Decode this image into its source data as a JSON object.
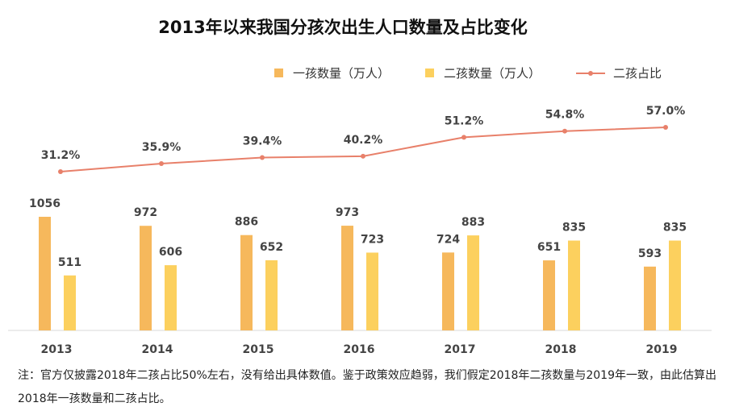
{
  "chart_data": {
    "type": "bar",
    "title": "2013年以来我国分孩次出生人口数量及占比变化",
    "categories": [
      "2013",
      "2014",
      "2015",
      "2016",
      "2017",
      "2018",
      "2019"
    ],
    "series": [
      {
        "name": "一孩数量（万人）",
        "type": "bar",
        "color": "#F6B85C",
        "values": [
          1056,
          972,
          886,
          973,
          724,
          651,
          593
        ]
      },
      {
        "name": "二孩数量（万人）",
        "type": "bar",
        "color": "#FCD05E",
        "values": [
          511,
          606,
          652,
          723,
          883,
          835,
          835
        ]
      },
      {
        "name": "二孩占比",
        "type": "line",
        "color": "#E8806A",
        "values": [
          31.2,
          35.9,
          39.4,
          40.2,
          51.2,
          54.8,
          57.0
        ],
        "labels": [
          "31.2%",
          "35.9%",
          "39.4%",
          "40.2%",
          "51.2%",
          "54.8%",
          "57.0%"
        ]
      }
    ],
    "legend": "top-right",
    "grid": false
  },
  "note": "注：官方仅披露2018年二孩占比50%左右，没有给出具体数值。鉴于政策效应趋弱，我们假定2018年二孩数量与2019年一致，由此估算出2018年一孩数量和二孩占比。"
}
